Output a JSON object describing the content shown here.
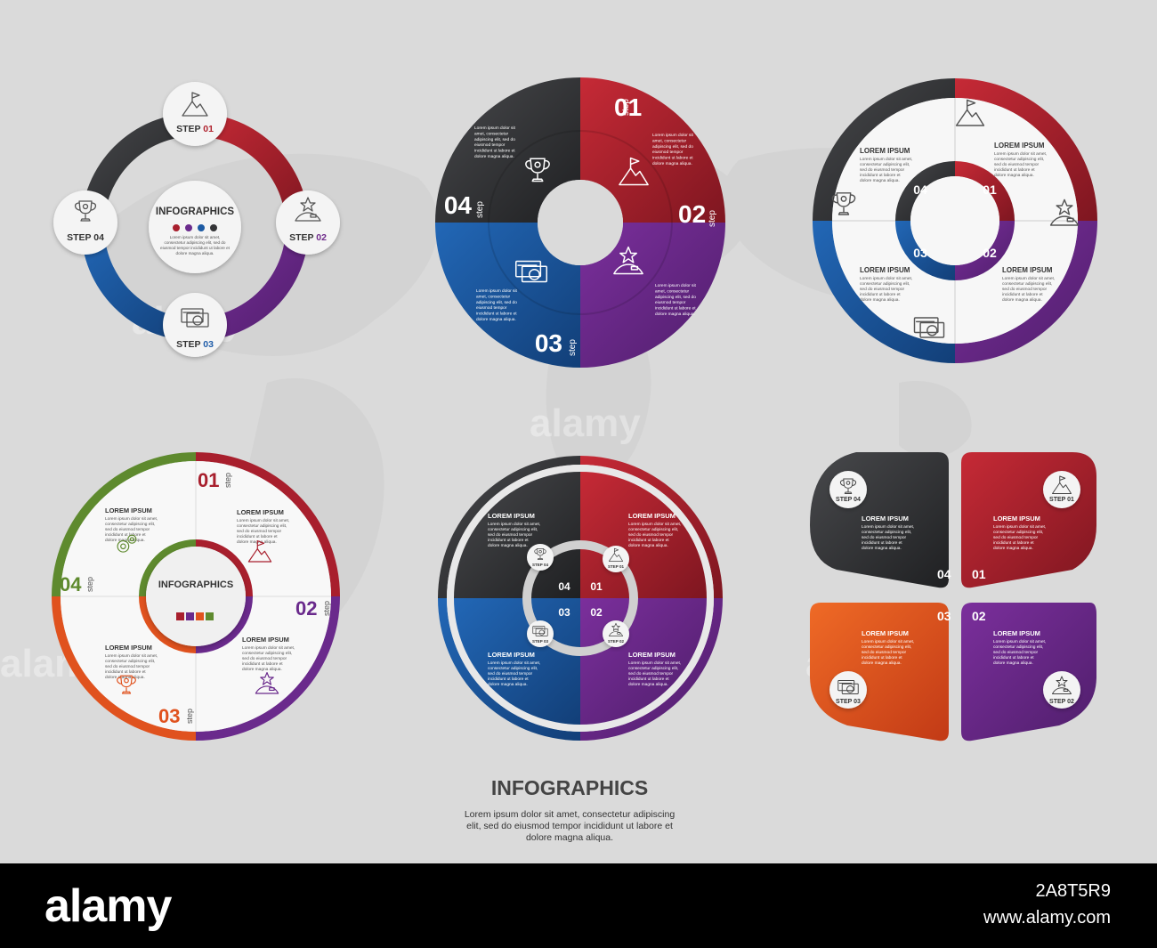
{
  "diagram1": {
    "title": "INFOGRAPHICS",
    "text": [
      "Lorem ipsum dolor sit amet,",
      "consectetur adipiscing elit, sed do",
      "eiusmod tempor incididunt ut labore et",
      "dolore magna aliqua."
    ],
    "steps": [
      {
        "prefix": "STEP",
        "num": "01",
        "num_color": "#b0232e"
      },
      {
        "prefix": "STEP",
        "num": "02",
        "num_color": "#6e2a8a"
      },
      {
        "prefix": "STEP",
        "num": "03",
        "num_color": "#1f5ca8"
      },
      {
        "prefix": "STEP 04",
        "num": "",
        "num_color": "#333333"
      }
    ]
  },
  "diagram2": {
    "step_word": "step",
    "numbers": [
      "01",
      "02",
      "03",
      "04"
    ],
    "text": [
      "Lorem ipsum dolor sit",
      "amet, consectetur",
      "adipiscing elit, sed do",
      "eiusmod tempor",
      "incididunt ut labore et",
      "dolore magna aliqua."
    ]
  },
  "diagram3": {
    "heading": "LOREM IPSUM",
    "numbers": [
      "01",
      "02",
      "03",
      "04"
    ],
    "text": [
      "Lorem ipsum dolor sit amet,",
      "consectetur adipiscing elit,",
      "sed do eiusmod tempor",
      "incididunt ut labore et",
      "dolore magna aliqua."
    ]
  },
  "diagram4": {
    "step_word": "step",
    "center_title": "INFOGRAPHICS",
    "heading": "LOREM IPSUM",
    "numbers": [
      "01",
      "02",
      "03",
      "04"
    ],
    "text": [
      "Lorem ipsum dolor sit amet,",
      "consectetur adipiscing elit,",
      "sed do eiusmod tempor",
      "incididunt ut labore et",
      "dolore magna aliqua."
    ]
  },
  "diagram5": {
    "heading": "LOREM IPSUM",
    "numbers": [
      "01",
      "02",
      "03",
      "04"
    ],
    "step_labels": [
      "STEP 01",
      "STEP 02",
      "STEP 03",
      "STEP 04"
    ],
    "text": [
      "Lorem ipsum dolor sit amet,",
      "consectetur adipiscing elit,",
      "sed do eiusmod tempor",
      "incididunt ut labore et",
      "dolore magna aliqua."
    ]
  },
  "diagram6": {
    "heading": "LOREM IPSUM",
    "numbers": [
      "01",
      "02",
      "03",
      "04"
    ],
    "step_labels": [
      "STEP 01",
      "STEP 02",
      "STEP 03",
      "STEP 04"
    ],
    "text": [
      "Lorem ipsum dolor sit amet,",
      "consectetur adipiscing elit,",
      "sed do eiusmod tempor",
      "incididunt ut labore et",
      "dolore magna aliqua."
    ]
  },
  "footer_title": {
    "title": "INFOGRAPHICS",
    "lines": [
      "Lorem ipsum dolor sit amet, consectetur adipiscing",
      "elit, sed do eiusmod tempor incididunt ut labore et",
      "dolore magna aliqua."
    ]
  },
  "watermark": "alamy",
  "banner": {
    "logo": "alamy",
    "image_id": "2A8T5R9",
    "site": "www.alamy.com"
  },
  "colors": {
    "red": "#a81f2d",
    "purple": "#6a2a8c",
    "blue": "#1c5aa3",
    "dark": "#333436",
    "green": "#5e8a2e",
    "orange": "#e0521e",
    "background": "#dadada"
  },
  "icons": [
    "mountain-flag-icon",
    "star-hill-icon",
    "money-card-icon",
    "trophy-icon",
    "gears-icon"
  ]
}
